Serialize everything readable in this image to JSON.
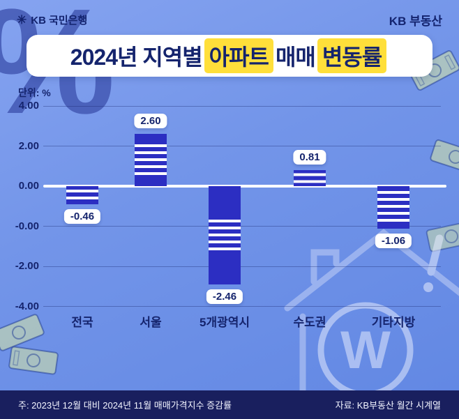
{
  "header": {
    "logo_label": "KB 국민은행",
    "brand": "KB 부동산"
  },
  "icons": {
    "kb_star": "✳"
  },
  "title": {
    "part1": "2024년 지역별",
    "highlight1": "아파트",
    "part2": "매매",
    "highlight2": "변동률"
  },
  "unit_label": "단위: %",
  "chart_data": {
    "type": "bar",
    "title": "2024년 지역별 아파트 매매 변동률",
    "xlabel": "",
    "ylabel": "단위: %",
    "categories": [
      "전국",
      "서울",
      "5개광역시",
      "수도권",
      "기타지방"
    ],
    "values": [
      -0.46,
      2.6,
      -2.46,
      0.81,
      -1.06
    ],
    "value_labels": [
      "-0.46",
      "2.60",
      "-2.46",
      "0.81",
      "-1.06"
    ],
    "y_tick_labels": [
      "4.00",
      "2.00",
      "0.00",
      "-0.00",
      "-2.00",
      "-4.00"
    ],
    "ylim": [
      -4,
      4
    ],
    "grid": true,
    "legend": "none",
    "bar_color": "#2c2ec2",
    "value_label_style": "white rounded badge"
  },
  "decorations": {
    "percent_mark": "%",
    "won_letter": "W"
  },
  "footer": {
    "note": "주: 2023년 12월 대비 2024년 11월 매매가격지수 증감률",
    "source": "자료: KB부동산 월간 시계열"
  },
  "colors": {
    "background": "#7295e9",
    "navy_text": "#15246d",
    "title_bg": "#ffffff",
    "highlight_yellow": "#ffdf3a",
    "bar": "#2c2ec2",
    "zero_line": "#ffffff",
    "footer_bg": "#191f5e",
    "footer_text": "#f2f4ff"
  }
}
